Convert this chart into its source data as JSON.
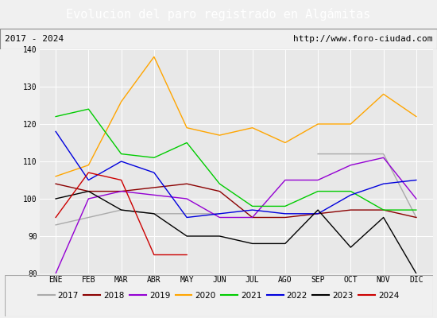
{
  "title": "Evolucion del paro registrado en Algámitas",
  "subtitle_left": "2017 - 2024",
  "subtitle_right": "http://www.foro-ciudad.com",
  "ylim": [
    80,
    140
  ],
  "yticks": [
    80,
    90,
    100,
    110,
    120,
    130,
    140
  ],
  "months": [
    "ENE",
    "FEB",
    "MAR",
    "ABR",
    "MAY",
    "JUN",
    "JUL",
    "AGO",
    "SEP",
    "OCT",
    "NOV",
    "DIC"
  ],
  "series": {
    "2017": {
      "color": "#aaaaaa",
      "data": [
        93,
        95,
        97,
        96,
        96,
        96,
        null,
        null,
        112,
        112,
        112,
        95
      ]
    },
    "2018": {
      "color": "#8b0000",
      "data": [
        104,
        102,
        102,
        103,
        104,
        102,
        95,
        95,
        96,
        97,
        97,
        95
      ]
    },
    "2019": {
      "color": "#9400d3",
      "data": [
        80,
        100,
        102,
        101,
        100,
        95,
        95,
        105,
        105,
        109,
        111,
        100
      ]
    },
    "2020": {
      "color": "#ffa500",
      "data": [
        106,
        109,
        126,
        138,
        119,
        117,
        119,
        115,
        120,
        120,
        128,
        122
      ]
    },
    "2021": {
      "color": "#00cc00",
      "data": [
        122,
        124,
        112,
        111,
        115,
        104,
        98,
        98,
        102,
        102,
        97,
        97
      ]
    },
    "2022": {
      "color": "#0000dd",
      "data": [
        118,
        105,
        110,
        107,
        95,
        96,
        97,
        96,
        96,
        101,
        104,
        105
      ]
    },
    "2023": {
      "color": "#000000",
      "data": [
        100,
        102,
        97,
        96,
        90,
        90,
        88,
        88,
        97,
        87,
        95,
        80
      ]
    },
    "2024": {
      "color": "#cc0000",
      "data": [
        95,
        107,
        105,
        85,
        85,
        null,
        null,
        null,
        null,
        null,
        null,
        null
      ]
    }
  },
  "bg_color": "#f0f0f0",
  "plot_bg_color": "#e8e8e8",
  "title_bg_color": "#4472c4",
  "title_text_color": "#ffffff",
  "subtitle_bg_color": "#d8d8d8",
  "grid_color": "#ffffff"
}
